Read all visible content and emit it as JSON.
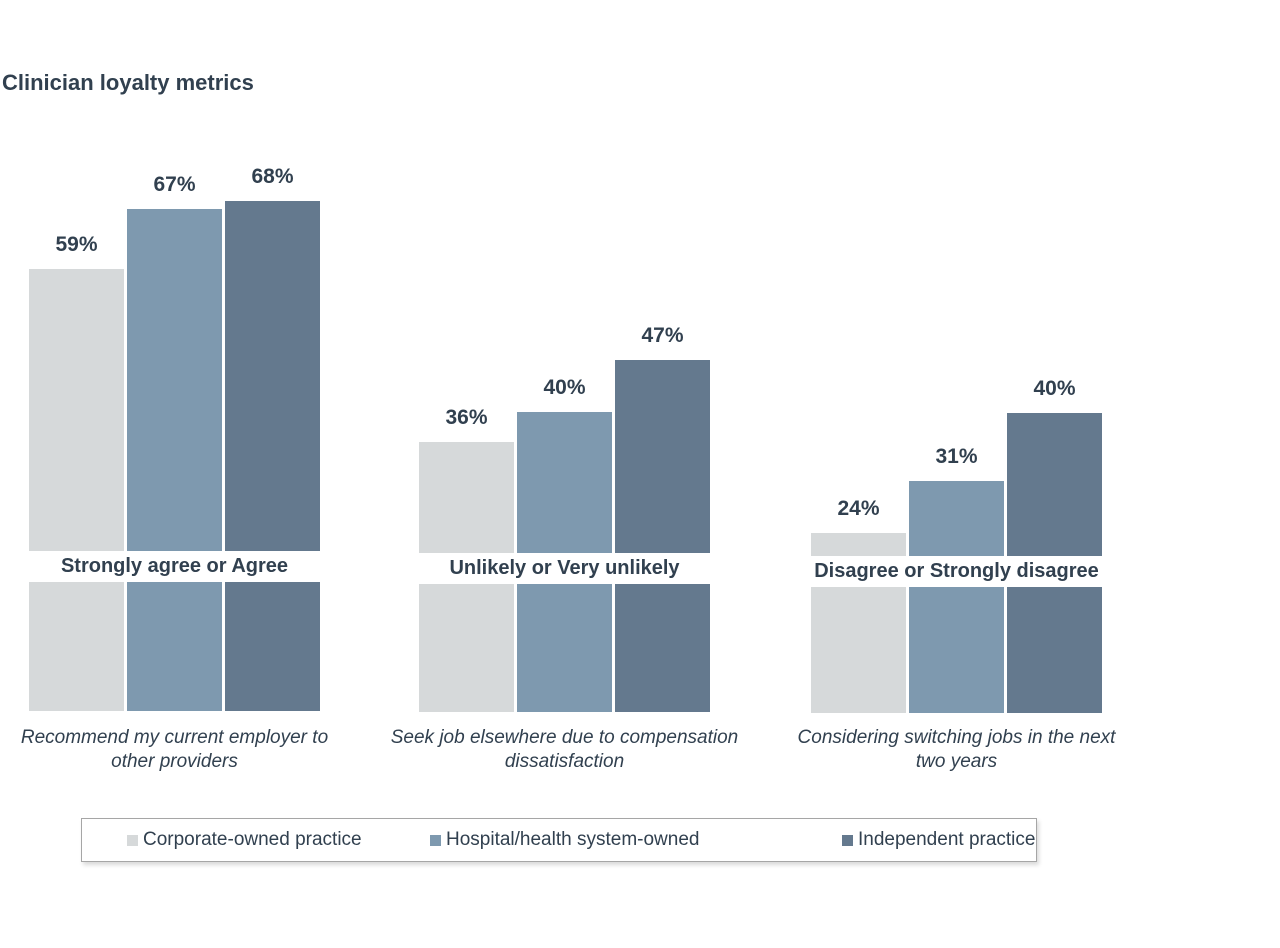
{
  "title": "Clinician loyalty metrics",
  "colors": {
    "text": "#31404f",
    "corporate": "#d6d9da",
    "hospital": "#7e99af",
    "independent": "#64798e",
    "legend_border": "#a6a6a6",
    "background": "#ffffff"
  },
  "chart_data": {
    "type": "bar",
    "title": "Clinician loyalty metrics",
    "value_unit": "%",
    "ylim": [
      0,
      100
    ],
    "axis_visible": false,
    "grid": false,
    "legend_position": "bottom",
    "series_names": [
      "Corporate-owned practice",
      "Hospital/health system-owned",
      "Independent practice"
    ],
    "groups": [
      {
        "category_label": "Strongly agree or Agree",
        "statement": "Recommend my current employer to\nother providers",
        "values": [
          59,
          67,
          68
        ],
        "labels": [
          "59%",
          "67%",
          "68%"
        ]
      },
      {
        "category_label": "Unlikely or Very unlikely",
        "statement": "Seek job elsewhere due to compensation\ndissatisfaction",
        "values": [
          36,
          40,
          47
        ],
        "labels": [
          "36%",
          "40%",
          "47%"
        ]
      },
      {
        "category_label": "Disagree or Strongly disagree",
        "statement": "Considering switching jobs in the next\ntwo years",
        "values": [
          24,
          31,
          40
        ],
        "labels": [
          "24%",
          "31%",
          "40%"
        ]
      }
    ]
  },
  "legend": {
    "items": [
      {
        "label": "Corporate-owned practice"
      },
      {
        "label": "Hospital/health system-owned"
      },
      {
        "label": "Independent practice"
      }
    ]
  }
}
